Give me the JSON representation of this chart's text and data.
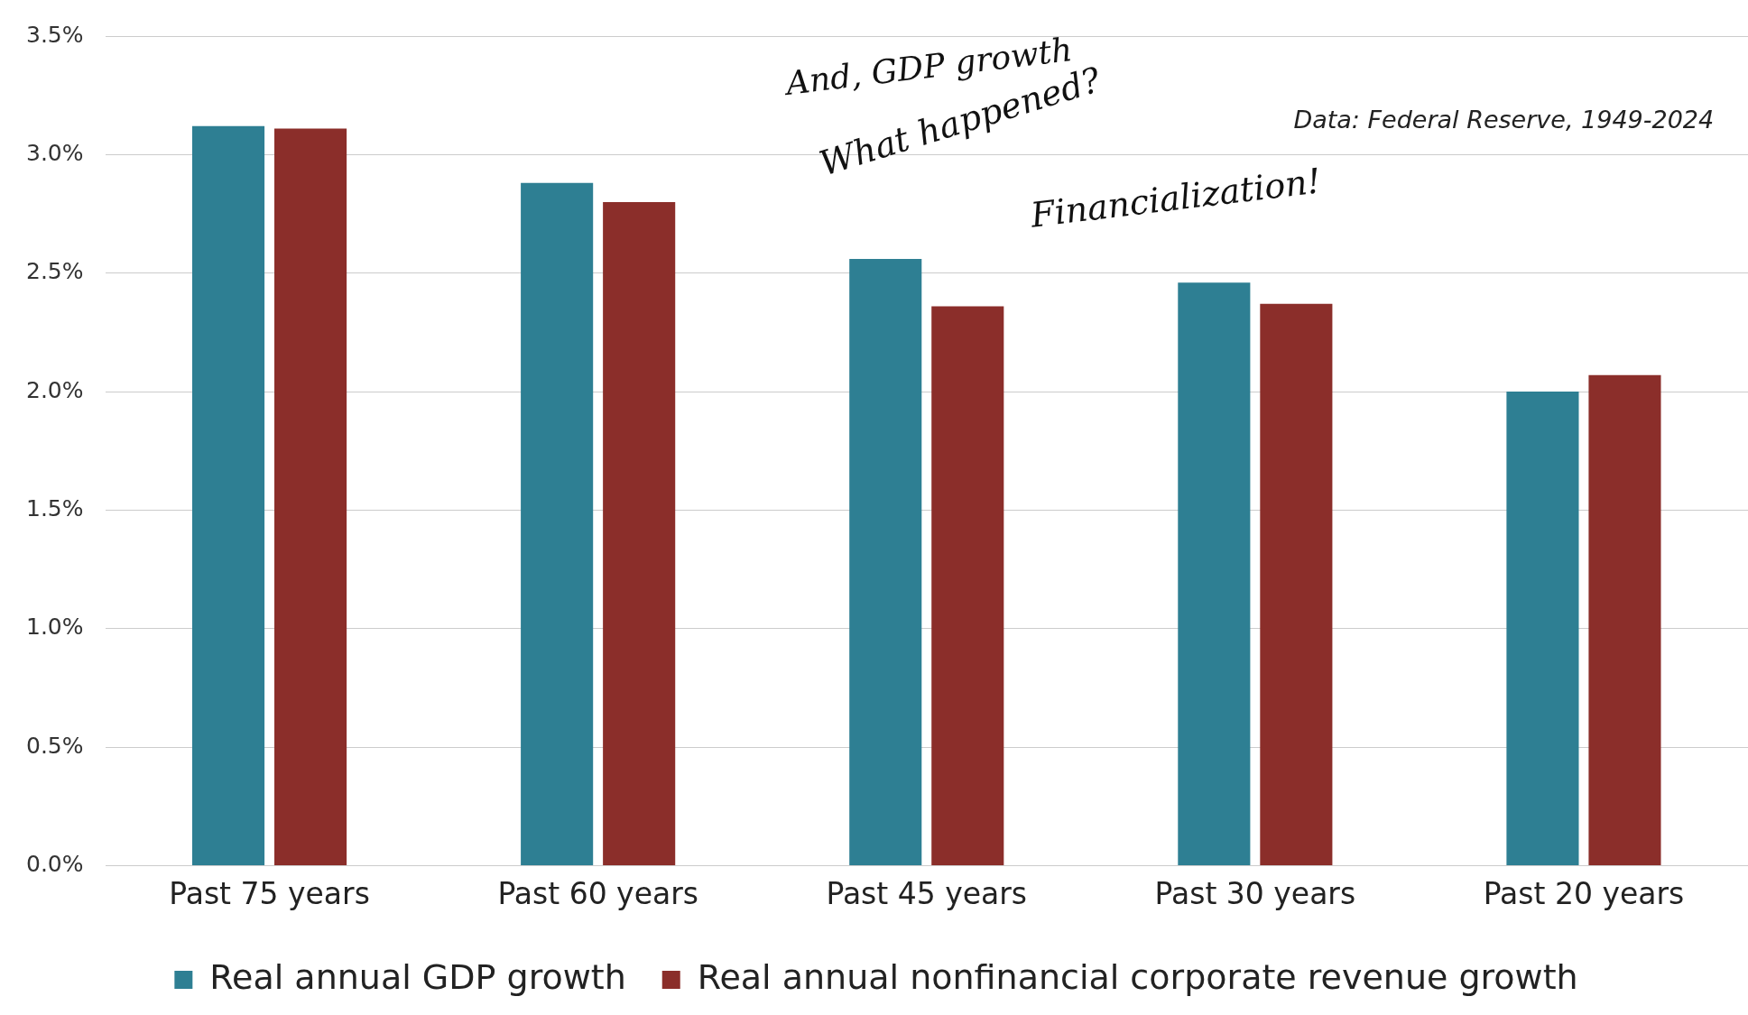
{
  "chart_data": {
    "type": "bar",
    "categories": [
      "Past 75 years",
      "Past 60 years",
      "Past 45 years",
      "Past 30 years",
      "Past 20 years"
    ],
    "series": [
      {
        "name": "Real annual GDP growth",
        "color": "#2e7f93",
        "values": [
          3.12,
          2.88,
          2.56,
          2.46,
          2.0
        ]
      },
      {
        "name": "Real annual nonfinancial corporate revenue growth",
        "color": "#8b2e2a",
        "values": [
          3.11,
          2.8,
          2.36,
          2.37,
          2.07
        ]
      }
    ],
    "ylim": [
      0,
      3.5
    ],
    "yticks": [
      {
        "value": 0,
        "label": "0.0%"
      },
      {
        "value": 0.5,
        "label": "0.5%"
      },
      {
        "value": 1,
        "label": "1.0%"
      },
      {
        "value": 1.5,
        "label": "1.5%"
      },
      {
        "value": 2,
        "label": "2.0%"
      },
      {
        "value": 2.5,
        "label": "2.5%"
      },
      {
        "value": 3,
        "label": "3.0%"
      },
      {
        "value": 3.5,
        "label": "3.5%"
      }
    ],
    "grid": "y",
    "legend": "bottom",
    "annotations": [
      "Data: Federal Reserve, 1949-2024",
      "And, GDP growth",
      "What happened?",
      "Financialization!"
    ]
  }
}
